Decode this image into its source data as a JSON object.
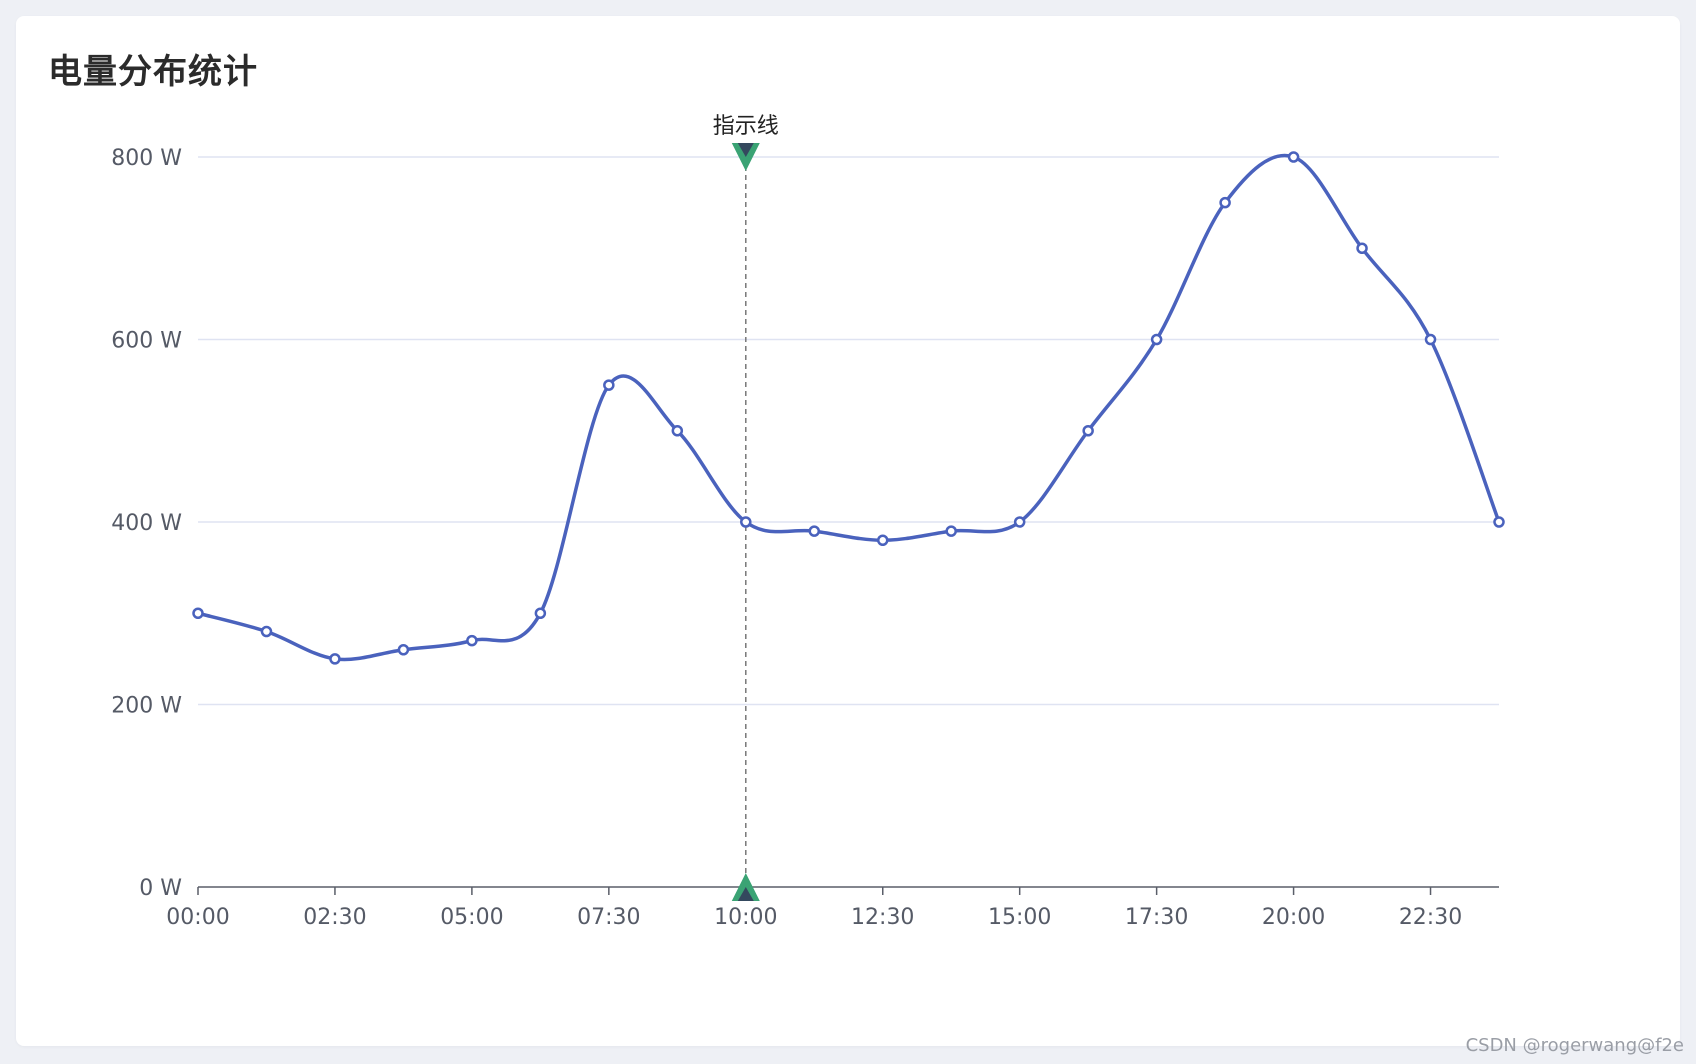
{
  "page": {
    "title": "电量分布统计",
    "watermark": "CSDN @rogerwang@f2e"
  },
  "chart_data": {
    "type": "line",
    "smooth": true,
    "y_unit_suffix": " W",
    "ylim": [
      0,
      800
    ],
    "y_ticks": [
      0,
      200,
      400,
      600,
      800
    ],
    "x_tick_labels": [
      "00:00",
      "02:30",
      "05:00",
      "07:30",
      "10:00",
      "12:30",
      "15:00",
      "17:30",
      "20:00",
      "22:30"
    ],
    "x": [
      "00:00",
      "01:15",
      "02:30",
      "03:45",
      "05:00",
      "06:15",
      "07:30",
      "08:45",
      "10:00",
      "11:15",
      "12:30",
      "13:45",
      "15:00",
      "16:15",
      "17:30",
      "18:45",
      "20:00",
      "21:15",
      "22:30",
      "23:45"
    ],
    "series": [
      {
        "values": [
          300,
          280,
          250,
          260,
          270,
          300,
          550,
          500,
          400,
          390,
          380,
          390,
          400,
          500,
          600,
          750,
          800,
          700,
          600,
          400
        ]
      }
    ],
    "grid": true,
    "mark_line": {
      "x": "10:00",
      "label": "指示线"
    },
    "colors": {
      "line": "#4a62bd",
      "grid": "#dfe3f2",
      "axis": "#5a5e69",
      "marker_fill": "#3aa374",
      "marker_inner": "#34495e",
      "mark_line": "#777777"
    }
  }
}
